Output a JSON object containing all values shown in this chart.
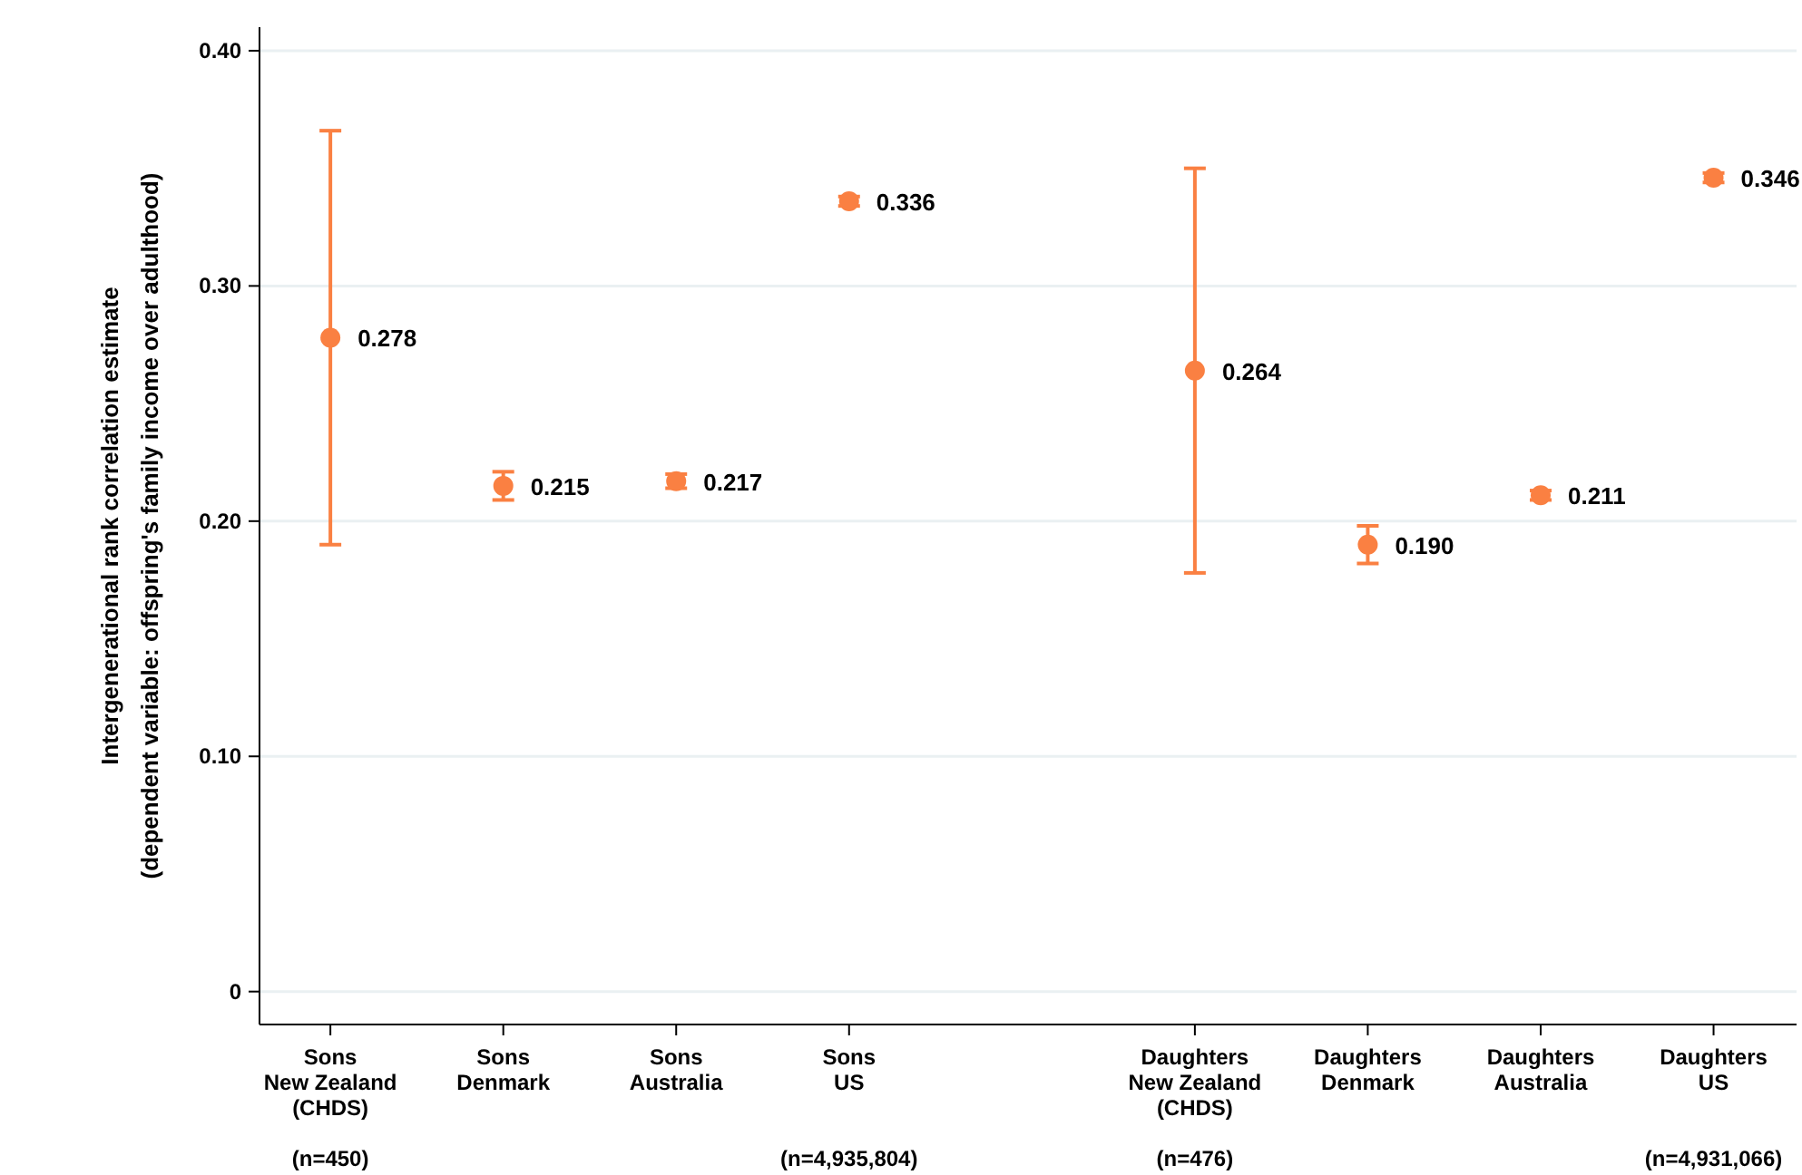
{
  "chart_data": {
    "type": "scatter",
    "ylabel": "Intergenerational rank correlation estimate\n(dependent variable: offspring's family income over adulthood)",
    "categories": [
      "Sons\nNew Zealand\n(CHDS)\n\n(n=450)",
      "Sons\nDenmark",
      "Sons\nAustralia",
      "Sons\nUS\n\n\n(n=4,935,804)",
      null,
      "Daughters\nNew Zealand\n(CHDS)\n\n(n=476)",
      "Daughters\nDenmark",
      "Daughters\nAustralia",
      "Daughters\nUS\n\n\n(n=4,931,066)"
    ],
    "series": [
      {
        "color": "#fa8042",
        "values": [
          0.278,
          0.215,
          0.217,
          0.336,
          null,
          0.264,
          0.19,
          0.211,
          0.346
        ],
        "errors": [
          [
            0.19,
            0.366
          ],
          [
            0.209,
            0.221
          ],
          [
            0.214,
            0.22
          ],
          [
            0.334,
            0.338
          ],
          null,
          [
            0.178,
            0.35
          ],
          [
            0.182,
            0.198
          ],
          [
            0.209,
            0.213
          ],
          [
            0.344,
            0.348
          ]
        ],
        "value_labels": [
          "0.278",
          "0.215",
          "0.217",
          "0.336",
          null,
          "0.264",
          "0.190",
          "0.211",
          "0.346"
        ]
      }
    ],
    "ylim": [
      -0.014,
      0.41
    ],
    "yticks": [
      {
        "value": 0,
        "label": "0"
      },
      {
        "value": 0.1,
        "label": "0.10"
      },
      {
        "value": 0.2,
        "label": "0.20"
      },
      {
        "value": 0.3,
        "label": "0.30"
      },
      {
        "value": 0.4,
        "label": "0.40"
      }
    ],
    "grid": "y",
    "marker": "circle"
  }
}
